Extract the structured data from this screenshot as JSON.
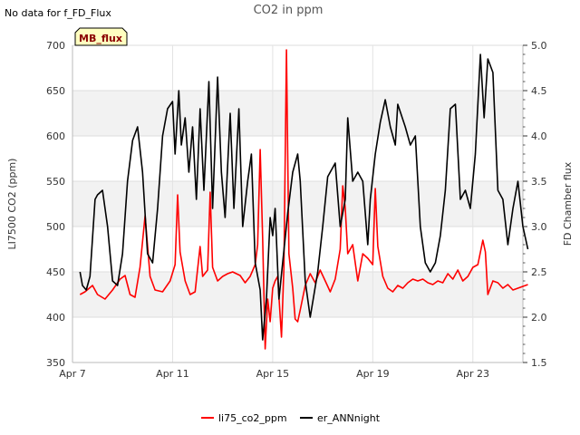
{
  "notice": "No data for f_FD_Flux",
  "badge": "MB_flux",
  "chart_data": {
    "type": "line",
    "title": "CO2 in ppm",
    "ylabel": "LI7500 CO2 (ppm)",
    "y2label": "FD Chamber flux",
    "ylim": [
      350,
      700
    ],
    "y2lim": [
      1.5,
      5.0
    ],
    "yticks": [
      350,
      400,
      450,
      500,
      550,
      600,
      650,
      700
    ],
    "y2ticks": [
      1.5,
      2.0,
      2.5,
      3.0,
      3.5,
      4.0,
      4.5,
      5.0
    ],
    "xlim": [
      7.0,
      25.0
    ],
    "xticks": [
      {
        "x": 7,
        "label": "Apr 7"
      },
      {
        "x": 11,
        "label": "Apr 11"
      },
      {
        "x": 15,
        "label": "Apr 15"
      },
      {
        "x": 19,
        "label": "Apr 19"
      },
      {
        "x": 23,
        "label": "Apr 23"
      }
    ],
    "x_unit": "day of April",
    "grid": true,
    "legend_position": "bottom-center",
    "series": [
      {
        "name": "li75_co2_ppm",
        "axis": "left",
        "color": "#ff0000",
        "points": [
          [
            7.3,
            425
          ],
          [
            7.5,
            428
          ],
          [
            7.8,
            435
          ],
          [
            8.0,
            425
          ],
          [
            8.3,
            420
          ],
          [
            8.6,
            430
          ],
          [
            8.9,
            442
          ],
          [
            9.1,
            446
          ],
          [
            9.3,
            425
          ],
          [
            9.5,
            422
          ],
          [
            9.7,
            455
          ],
          [
            9.9,
            512
          ],
          [
            10.1,
            445
          ],
          [
            10.3,
            430
          ],
          [
            10.6,
            428
          ],
          [
            10.9,
            440
          ],
          [
            11.1,
            458
          ],
          [
            11.2,
            535
          ],
          [
            11.3,
            472
          ],
          [
            11.5,
            440
          ],
          [
            11.7,
            425
          ],
          [
            11.9,
            428
          ],
          [
            12.1,
            478
          ],
          [
            12.2,
            445
          ],
          [
            12.4,
            452
          ],
          [
            12.5,
            538
          ],
          [
            12.6,
            455
          ],
          [
            12.8,
            440
          ],
          [
            13.0,
            445
          ],
          [
            13.2,
            448
          ],
          [
            13.4,
            450
          ],
          [
            13.7,
            446
          ],
          [
            13.9,
            438
          ],
          [
            14.1,
            445
          ],
          [
            14.3,
            458
          ],
          [
            14.4,
            480
          ],
          [
            14.5,
            585
          ],
          [
            14.6,
            488
          ],
          [
            14.7,
            365
          ],
          [
            14.8,
            420
          ],
          [
            14.9,
            395
          ],
          [
            15.0,
            432
          ],
          [
            15.1,
            440
          ],
          [
            15.2,
            445
          ],
          [
            15.35,
            378
          ],
          [
            15.45,
            455
          ],
          [
            15.55,
            695
          ],
          [
            15.65,
            470
          ],
          [
            15.8,
            432
          ],
          [
            15.9,
            398
          ],
          [
            16.0,
            395
          ],
          [
            16.1,
            408
          ],
          [
            16.3,
            435
          ],
          [
            16.5,
            448
          ],
          [
            16.7,
            438
          ],
          [
            16.9,
            452
          ],
          [
            17.1,
            440
          ],
          [
            17.3,
            428
          ],
          [
            17.5,
            442
          ],
          [
            17.7,
            475
          ],
          [
            17.8,
            545
          ],
          [
            17.9,
            520
          ],
          [
            18.0,
            470
          ],
          [
            18.2,
            480
          ],
          [
            18.4,
            440
          ],
          [
            18.6,
            470
          ],
          [
            18.8,
            465
          ],
          [
            19.0,
            458
          ],
          [
            19.1,
            542
          ],
          [
            19.2,
            478
          ],
          [
            19.4,
            445
          ],
          [
            19.6,
            432
          ],
          [
            19.8,
            428
          ],
          [
            20.0,
            435
          ],
          [
            20.2,
            432
          ],
          [
            20.4,
            438
          ],
          [
            20.6,
            442
          ],
          [
            20.8,
            440
          ],
          [
            21.0,
            442
          ],
          [
            21.2,
            438
          ],
          [
            21.4,
            436
          ],
          [
            21.6,
            440
          ],
          [
            21.8,
            438
          ],
          [
            22.0,
            448
          ],
          [
            22.2,
            442
          ],
          [
            22.4,
            452
          ],
          [
            22.6,
            440
          ],
          [
            22.8,
            445
          ],
          [
            23.0,
            455
          ],
          [
            23.2,
            458
          ],
          [
            23.4,
            485
          ],
          [
            23.5,
            472
          ],
          [
            23.6,
            425
          ],
          [
            23.8,
            440
          ],
          [
            24.0,
            438
          ],
          [
            24.2,
            432
          ],
          [
            24.4,
            436
          ],
          [
            24.6,
            430
          ],
          [
            24.8,
            432
          ],
          [
            25.0,
            434
          ],
          [
            25.2,
            436
          ]
        ]
      },
      {
        "name": "er_ANNnight",
        "axis": "right",
        "color": "#000000",
        "points": [
          [
            7.3,
            2.5
          ],
          [
            7.4,
            2.35
          ],
          [
            7.55,
            2.3
          ],
          [
            7.7,
            2.45
          ],
          [
            7.9,
            3.3
          ],
          [
            8.0,
            3.35
          ],
          [
            8.2,
            3.4
          ],
          [
            8.4,
            3.0
          ],
          [
            8.6,
            2.4
          ],
          [
            8.8,
            2.35
          ],
          [
            9.0,
            2.7
          ],
          [
            9.2,
            3.5
          ],
          [
            9.4,
            3.95
          ],
          [
            9.6,
            4.1
          ],
          [
            9.8,
            3.6
          ],
          [
            10.0,
            2.7
          ],
          [
            10.2,
            2.6
          ],
          [
            10.4,
            3.2
          ],
          [
            10.6,
            4.0
          ],
          [
            10.8,
            4.3
          ],
          [
            11.0,
            4.38
          ],
          [
            11.1,
            3.8
          ],
          [
            11.25,
            4.5
          ],
          [
            11.35,
            3.9
          ],
          [
            11.5,
            4.2
          ],
          [
            11.65,
            3.6
          ],
          [
            11.8,
            4.1
          ],
          [
            11.95,
            3.3
          ],
          [
            12.1,
            4.3
          ],
          [
            12.25,
            3.4
          ],
          [
            12.45,
            4.6
          ],
          [
            12.6,
            3.2
          ],
          [
            12.8,
            4.65
          ],
          [
            12.95,
            3.6
          ],
          [
            13.1,
            3.1
          ],
          [
            13.3,
            4.25
          ],
          [
            13.45,
            3.2
          ],
          [
            13.65,
            4.3
          ],
          [
            13.8,
            3.0
          ],
          [
            14.0,
            3.5
          ],
          [
            14.15,
            3.8
          ],
          [
            14.3,
            2.6
          ],
          [
            14.5,
            2.3
          ],
          [
            14.6,
            1.75
          ],
          [
            14.75,
            2.2
          ],
          [
            14.9,
            3.1
          ],
          [
            15.0,
            2.9
          ],
          [
            15.1,
            3.2
          ],
          [
            15.25,
            2.2
          ],
          [
            15.4,
            2.6
          ],
          [
            15.6,
            3.15
          ],
          [
            15.8,
            3.6
          ],
          [
            16.0,
            3.8
          ],
          [
            16.1,
            3.5
          ],
          [
            16.3,
            2.4
          ],
          [
            16.5,
            2.0
          ],
          [
            16.8,
            2.5
          ],
          [
            17.0,
            3.0
          ],
          [
            17.2,
            3.55
          ],
          [
            17.5,
            3.7
          ],
          [
            17.7,
            3.0
          ],
          [
            17.9,
            3.3
          ],
          [
            18.0,
            4.2
          ],
          [
            18.2,
            3.5
          ],
          [
            18.4,
            3.6
          ],
          [
            18.6,
            3.5
          ],
          [
            18.8,
            2.8
          ],
          [
            18.9,
            3.3
          ],
          [
            19.1,
            3.8
          ],
          [
            19.3,
            4.15
          ],
          [
            19.5,
            4.4
          ],
          [
            19.7,
            4.1
          ],
          [
            19.9,
            3.9
          ],
          [
            20.0,
            4.35
          ],
          [
            20.3,
            4.1
          ],
          [
            20.5,
            3.9
          ],
          [
            20.7,
            4.0
          ],
          [
            20.9,
            3.0
          ],
          [
            21.1,
            2.6
          ],
          [
            21.3,
            2.5
          ],
          [
            21.5,
            2.6
          ],
          [
            21.7,
            2.9
          ],
          [
            21.9,
            3.4
          ],
          [
            22.1,
            4.3
          ],
          [
            22.3,
            4.35
          ],
          [
            22.5,
            3.3
          ],
          [
            22.7,
            3.4
          ],
          [
            22.9,
            3.2
          ],
          [
            23.1,
            3.8
          ],
          [
            23.3,
            4.9
          ],
          [
            23.45,
            4.2
          ],
          [
            23.6,
            4.85
          ],
          [
            23.8,
            4.7
          ],
          [
            24.0,
            3.4
          ],
          [
            24.2,
            3.3
          ],
          [
            24.4,
            2.8
          ],
          [
            24.6,
            3.2
          ],
          [
            24.8,
            3.5
          ],
          [
            25.0,
            3.0
          ],
          [
            25.2,
            2.75
          ]
        ]
      }
    ]
  }
}
